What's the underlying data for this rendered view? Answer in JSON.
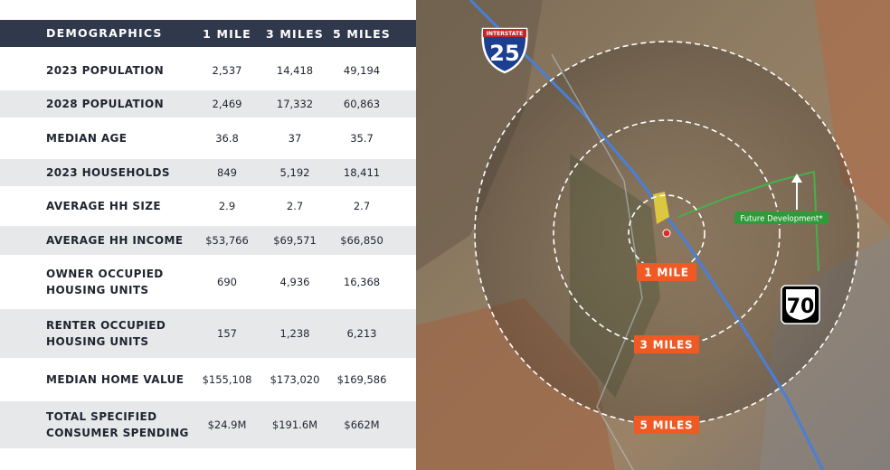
{
  "table": {
    "header": [
      "DEMOGRAPHICS",
      "1 MILE",
      "3 MILES",
      "5 MILES"
    ],
    "rows": [
      [
        "2023 POPULATION",
        "2,537",
        "14,418",
        "49,194"
      ],
      [
        "2028 POPULATION",
        "2,469",
        "17,332",
        "60,863"
      ],
      [
        "MEDIAN AGE",
        "36.8",
        "37",
        "35.7"
      ],
      [
        "2023 HOUSEHOLDS",
        "849",
        "5,192",
        "18,411"
      ],
      [
        "AVERAGE HH SIZE",
        "2.9",
        "2.7",
        "2.7"
      ],
      [
        "AVERAGE HH INCOME",
        "$53,766",
        "$69,571",
        "$66,850"
      ],
      [
        "OWNER OCCUPIED HOUSING UNITS",
        "690",
        "4,936",
        "16,368"
      ],
      [
        "RENTER OCCUPIED HOUSING UNITS",
        "157",
        "1,238",
        "6,213"
      ],
      [
        "MEDIAN HOME VALUE",
        "$155,108",
        "$173,020",
        "$169,586"
      ],
      [
        "TOTAL SPECIFIED CONSUMER SPENDING",
        "$24.9M",
        "$191.6M",
        "$662M"
      ]
    ]
  },
  "map": {
    "interstate_label": "INTERSTATE",
    "interstate_number": "25",
    "us_route_number": "70",
    "future_label": "Future Development*",
    "rings": [
      "1 MILE",
      "3 MILES",
      "5 MILES"
    ]
  }
}
